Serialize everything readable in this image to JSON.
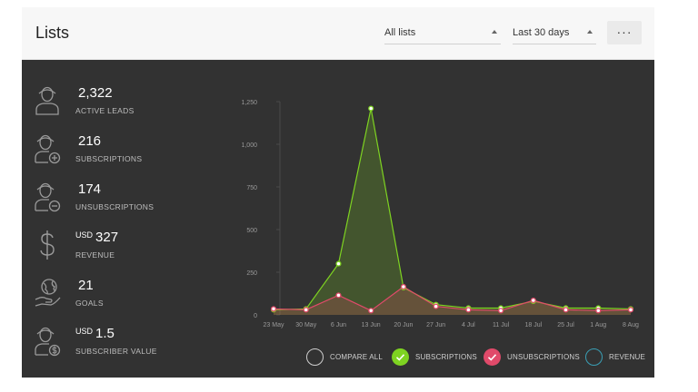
{
  "header": {
    "title": "Lists",
    "list_filter": "All lists",
    "range_filter": "Last 30 days",
    "more_label": "···"
  },
  "stats": [
    {
      "icon": "person-icon",
      "currency": "",
      "value": "2,322",
      "label": "ACTIVE LEADS"
    },
    {
      "icon": "person-plus-icon",
      "currency": "",
      "value": "216",
      "label": "SUBSCRIPTIONS"
    },
    {
      "icon": "person-minus-icon",
      "currency": "",
      "value": "174",
      "label": "UNSUBSCRIPTIONS"
    },
    {
      "icon": "dollar-icon",
      "currency": "USD",
      "value": "327",
      "label": "REVENUE"
    },
    {
      "icon": "globe-hand-icon",
      "currency": "",
      "value": "21",
      "label": "GOALS"
    },
    {
      "icon": "person-dollar-icon",
      "currency": "USD",
      "value": "1.5",
      "label": "SUBSCRIBER VALUE"
    }
  ],
  "legend": [
    {
      "label": "COMPARE ALL",
      "color": "#cfcfcf",
      "filled": false,
      "checked": false
    },
    {
      "label": "SUBSCRIPTIONS",
      "color": "#7ed321",
      "filled": true,
      "checked": true
    },
    {
      "label": "UNSUBSCRIPTIONS",
      "color": "#e04a6a",
      "filled": true,
      "checked": true
    },
    {
      "label": "REVENUE",
      "color": "#3a9fb5",
      "filled": false,
      "checked": false
    }
  ],
  "chart_data": {
    "type": "area",
    "categories": [
      "23 May",
      "30 May",
      "6 Jun",
      "13 Jun",
      "20 Jun",
      "27 Jun",
      "4 Jul",
      "11 Jul",
      "18 Jul",
      "25 Jul",
      "1 Aug",
      "8 Aug"
    ],
    "ylim": [
      0,
      1250
    ],
    "yticks": [
      0,
      250,
      500,
      750,
      "1,000",
      "1,250"
    ],
    "ytick_values": [
      0,
      250,
      500,
      750,
      1000,
      1250
    ],
    "series": [
      {
        "name": "SUBSCRIPTIONS",
        "color": "#7ed321",
        "values": [
          30,
          35,
          300,
          1210,
          160,
          60,
          40,
          40,
          80,
          40,
          40,
          35
        ]
      },
      {
        "name": "UNSUBSCRIPTIONS",
        "color": "#e04a6a",
        "values": [
          35,
          30,
          115,
          25,
          165,
          50,
          30,
          25,
          85,
          30,
          25,
          30
        ]
      }
    ]
  }
}
